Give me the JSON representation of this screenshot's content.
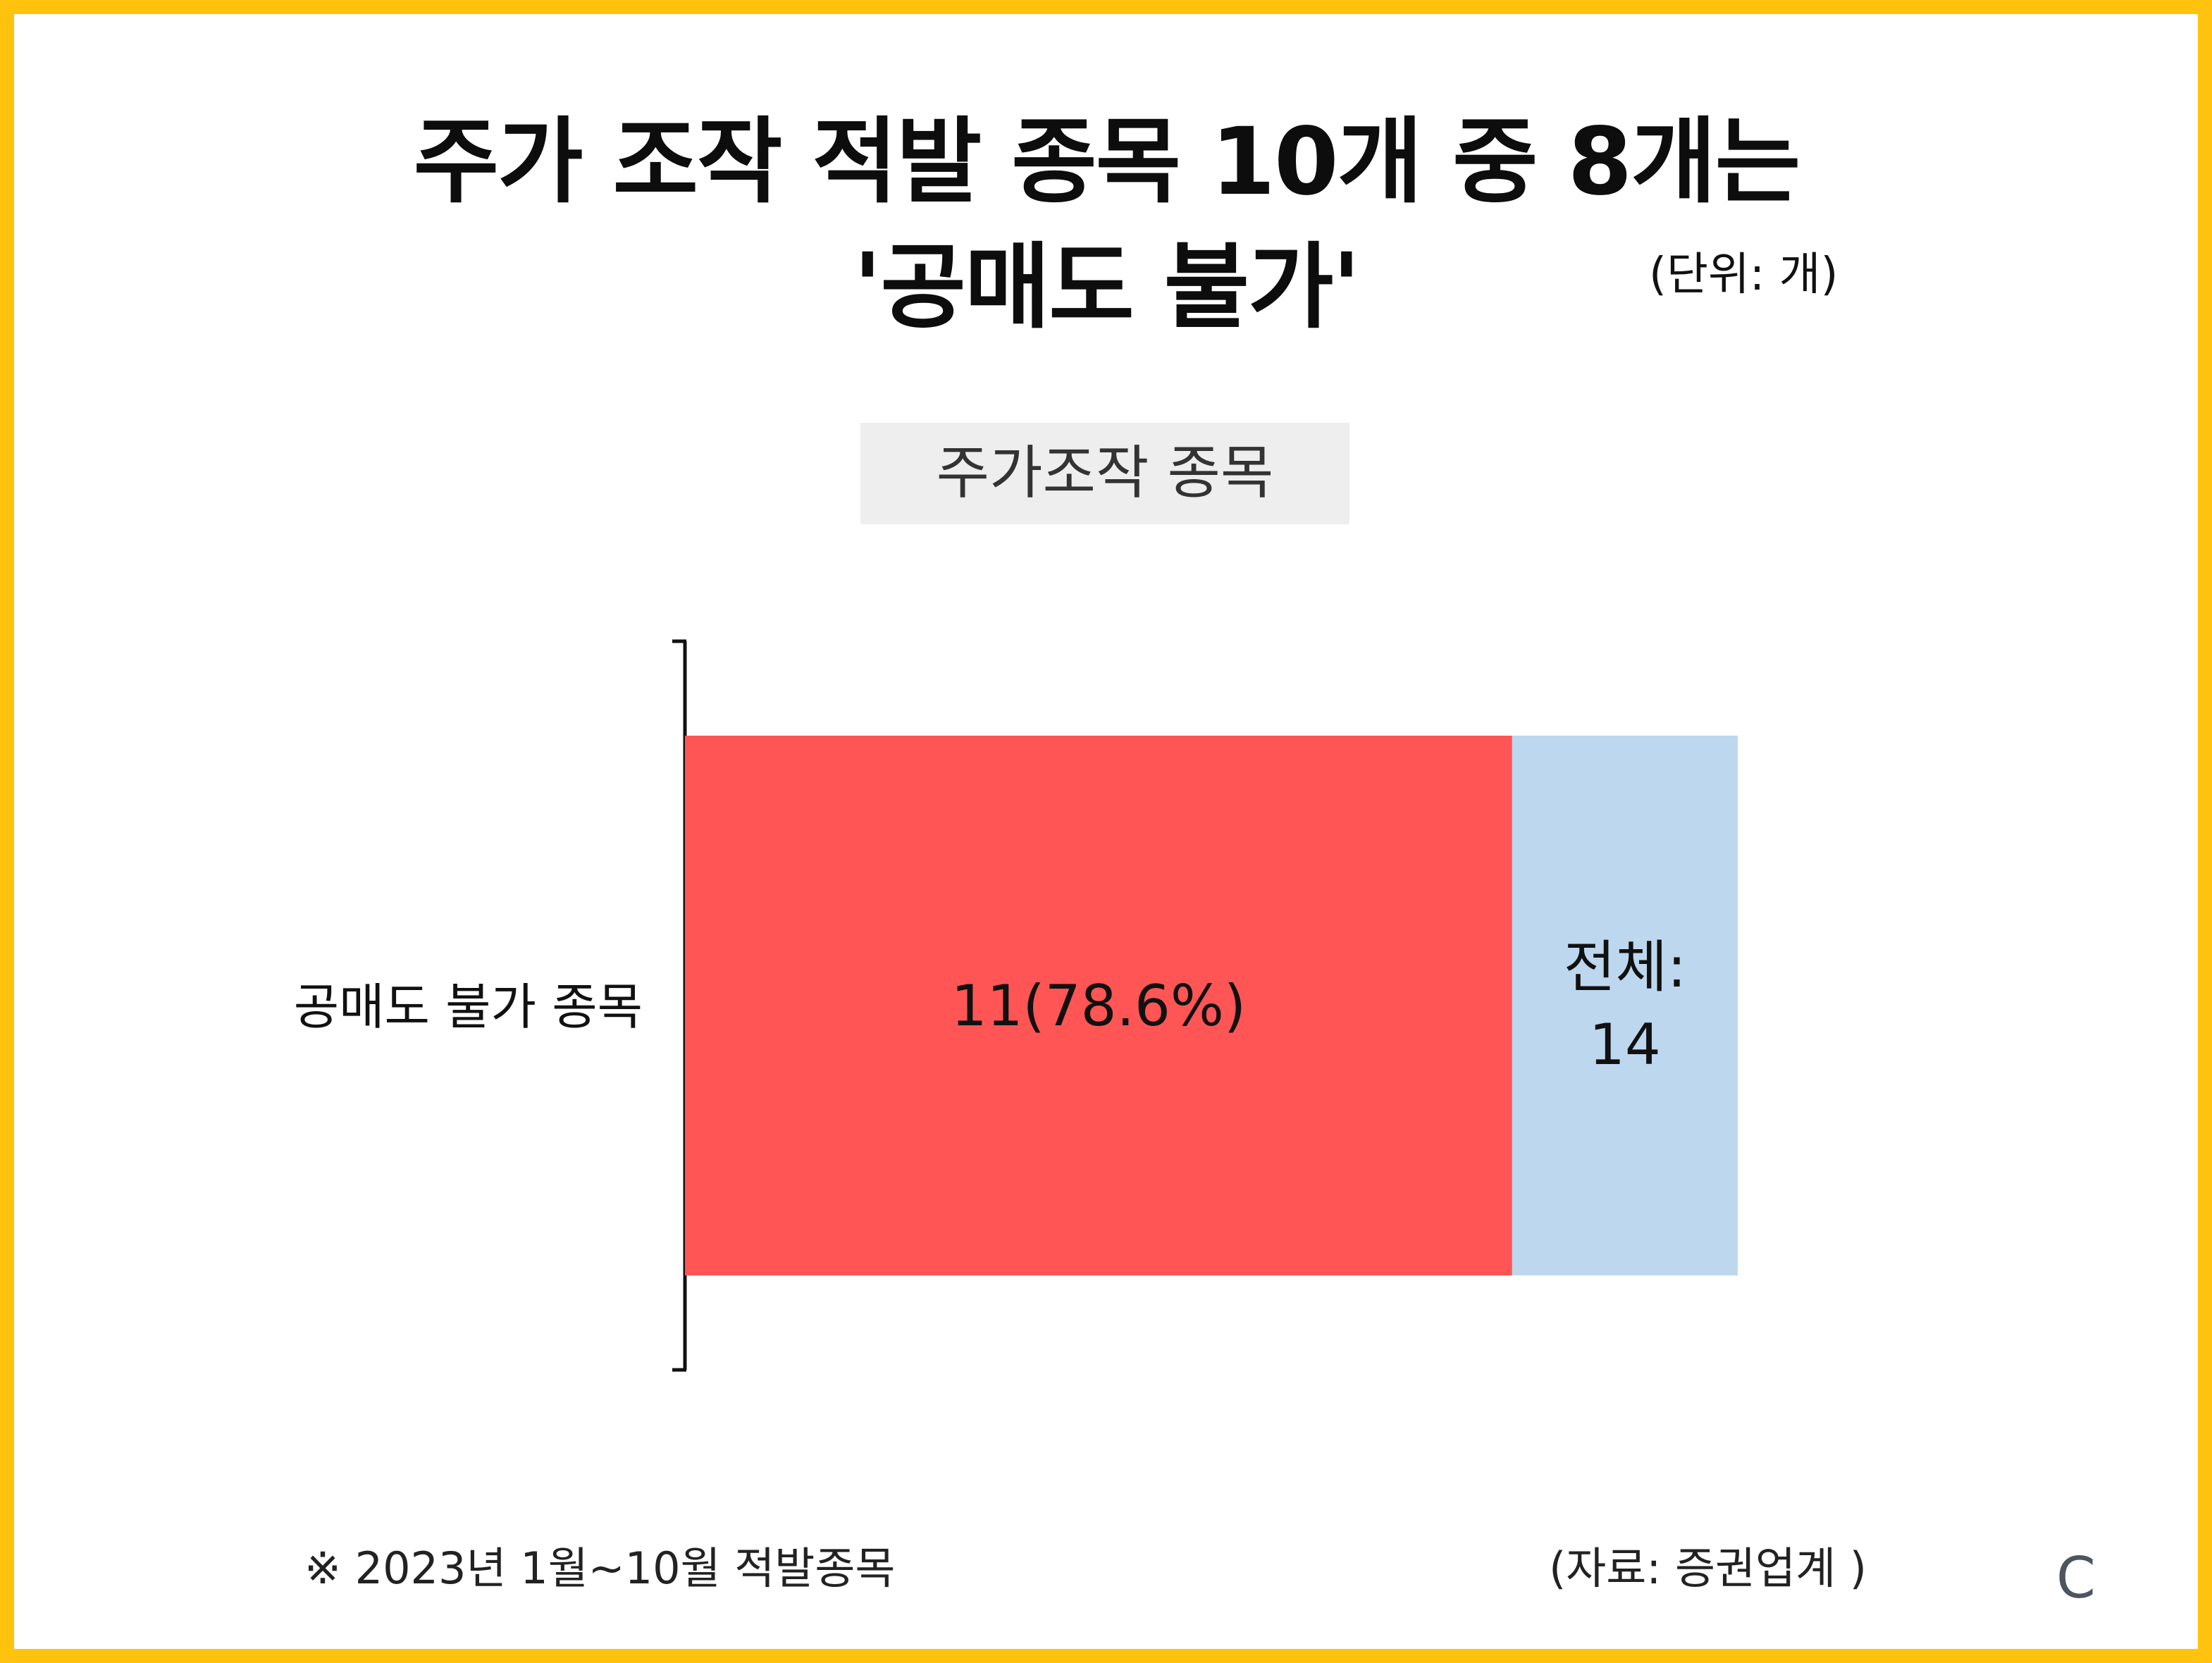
{
  "title": {
    "line1": "주가 조작 적발 종목 10개 중 8개는",
    "line2": "'공매도 불가'"
  },
  "unit": "(단위: 개)",
  "legend": {
    "label": "주가조작 종목"
  },
  "colors": {
    "border": "#FFC20E",
    "highlight": "#FF5555",
    "total": "#BDD7EE",
    "legend_bg": "#EEEEEE"
  },
  "chart_data": {
    "type": "bar",
    "orientation": "horizontal",
    "stacked": true,
    "categories": [
      "공매도 불가 종목"
    ],
    "series": [
      {
        "name": "주가조작 종목",
        "values": [
          11
        ],
        "label": "11(78.6%)",
        "color": "#FF5555"
      },
      {
        "values": [
          3
        ],
        "label_lines": [
          "전체:",
          "14"
        ],
        "color": "#BDD7EE"
      }
    ],
    "total": 14,
    "legend_position": "top-center",
    "grid": false
  },
  "footnote": "※ 2023년 1월~10월 적발종목",
  "source": "(자료: 증권업계 )",
  "logo": "C"
}
